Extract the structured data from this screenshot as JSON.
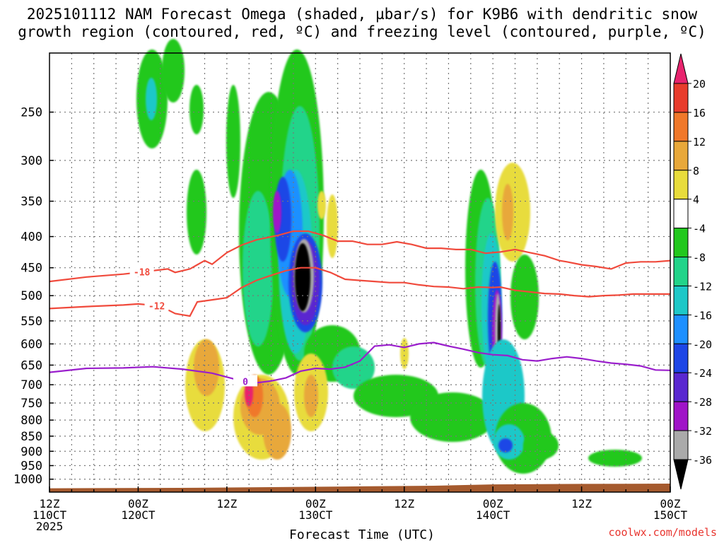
{
  "title": "2025101112 NAM Forecast Omega (shaded, µbar/s) for K9B6 with dendritic snow\ngrowth region (contoured, red, ºC) and freezing level (contoured, purple, ºC)",
  "footer": "coolwx.com/models",
  "chart_data": {
    "type": "time-height cross section",
    "xlabel": "Forecast Time (UTC)",
    "ylabel": "",
    "x_range_hours": [
      0,
      84
    ],
    "y_range_hpa": [
      1050,
      200
    ],
    "x_ticks": [
      {
        "hour": 0,
        "lines": [
          "12Z",
          "110CT",
          "2025"
        ]
      },
      {
        "hour": 12,
        "lines": [
          "00Z",
          "120CT"
        ]
      },
      {
        "hour": 24,
        "lines": [
          "12Z"
        ]
      },
      {
        "hour": 36,
        "lines": [
          "00Z",
          "130CT"
        ]
      },
      {
        "hour": 48,
        "lines": [
          "12Z"
        ]
      },
      {
        "hour": 60,
        "lines": [
          "00Z",
          "140CT"
        ]
      },
      {
        "hour": 72,
        "lines": [
          "12Z"
        ]
      },
      {
        "hour": 84,
        "lines": [
          "00Z",
          "150CT"
        ]
      }
    ],
    "y_ticks": [
      250,
      300,
      350,
      400,
      450,
      500,
      550,
      600,
      650,
      700,
      750,
      800,
      850,
      900,
      950,
      1000
    ],
    "colorbar": {
      "labels": [
        "20",
        "16",
        "12",
        "8",
        "4",
        "-4",
        "-8",
        "-12",
        "-16",
        "-20",
        "-24",
        "-28",
        "-32",
        "-36"
      ],
      "colors": [
        "#e8246e",
        "#e83c2c",
        "#f0782a",
        "#e8a83a",
        "#e8dc3c",
        "#ffffff",
        "#22c81e",
        "#22d48a",
        "#1ec8c8",
        "#1e90ff",
        "#1e46e6",
        "#5a28d0",
        "#a014c8",
        "#aaaaaa",
        "#000000"
      ]
    },
    "contours": [
      {
        "name": "-18 ºC",
        "color": "#f04a3c",
        "label": "-18",
        "points": [
          [
            0,
            474
          ],
          [
            5,
            466
          ],
          [
            10,
            461
          ],
          [
            12,
            458
          ],
          [
            16,
            452
          ],
          [
            17,
            458
          ],
          [
            19,
            452
          ],
          [
            20,
            445
          ],
          [
            21,
            438
          ],
          [
            22,
            444
          ],
          [
            24,
            425
          ],
          [
            26,
            413
          ],
          [
            28,
            405
          ],
          [
            31,
            398
          ],
          [
            33,
            392
          ],
          [
            35,
            392
          ],
          [
            37,
            398
          ],
          [
            39,
            407
          ],
          [
            41,
            407
          ],
          [
            43,
            412
          ],
          [
            45,
            412
          ],
          [
            47,
            408
          ],
          [
            49,
            412
          ],
          [
            51,
            418
          ],
          [
            53,
            418
          ],
          [
            55,
            420
          ],
          [
            57,
            420
          ],
          [
            59,
            426
          ],
          [
            61,
            424
          ],
          [
            63,
            420
          ],
          [
            65,
            425
          ],
          [
            67,
            430
          ],
          [
            69,
            438
          ],
          [
            70,
            440
          ],
          [
            72,
            445
          ],
          [
            74,
            448
          ],
          [
            76,
            452
          ],
          [
            78,
            442
          ],
          [
            80,
            440
          ],
          [
            82,
            440
          ],
          [
            84,
            438
          ]
        ],
        "label_at_hour": 12.5
      },
      {
        "name": "-12 ºC",
        "color": "#f04a3c",
        "label": "-12",
        "points": [
          [
            0,
            525
          ],
          [
            5,
            521
          ],
          [
            10,
            518
          ],
          [
            12,
            516
          ],
          [
            15,
            520
          ],
          [
            17,
            535
          ],
          [
            19,
            540
          ],
          [
            20,
            512
          ],
          [
            22,
            508
          ],
          [
            24,
            504
          ],
          [
            26,
            485
          ],
          [
            28,
            472
          ],
          [
            30,
            463
          ],
          [
            32,
            455
          ],
          [
            34,
            450
          ],
          [
            36,
            450
          ],
          [
            38,
            458
          ],
          [
            40,
            470
          ],
          [
            42,
            472
          ],
          [
            44,
            474
          ],
          [
            46,
            476
          ],
          [
            48,
            476
          ],
          [
            50,
            480
          ],
          [
            52,
            483
          ],
          [
            54,
            484
          ],
          [
            56,
            487
          ],
          [
            58,
            484
          ],
          [
            60,
            485
          ],
          [
            61,
            484
          ],
          [
            63,
            490
          ],
          [
            65,
            493
          ],
          [
            67,
            496
          ],
          [
            69,
            497
          ],
          [
            71,
            500
          ],
          [
            73,
            502
          ],
          [
            75,
            500
          ],
          [
            77,
            499
          ],
          [
            79,
            497
          ],
          [
            81,
            497
          ],
          [
            84,
            497
          ]
        ],
        "label_at_hour": 14.5
      },
      {
        "name": "0 ºC (freezing level)",
        "color": "#9a1ecc",
        "label": "0",
        "points": [
          [
            0,
            668
          ],
          [
            5,
            658
          ],
          [
            10,
            657
          ],
          [
            14,
            654
          ],
          [
            18,
            660
          ],
          [
            22,
            670
          ],
          [
            26,
            690
          ],
          [
            28,
            695
          ],
          [
            30,
            690
          ],
          [
            32,
            682
          ],
          [
            34,
            665
          ],
          [
            36,
            658
          ],
          [
            38,
            660
          ],
          [
            40,
            655
          ],
          [
            42,
            640
          ],
          [
            44,
            605
          ],
          [
            46,
            602
          ],
          [
            48,
            608
          ],
          [
            50,
            600
          ],
          [
            52,
            597
          ],
          [
            54,
            605
          ],
          [
            56,
            612
          ],
          [
            58,
            620
          ],
          [
            60,
            625
          ],
          [
            62,
            627
          ],
          [
            64,
            637
          ],
          [
            66,
            640
          ],
          [
            68,
            634
          ],
          [
            70,
            630
          ],
          [
            72,
            634
          ],
          [
            74,
            640
          ],
          [
            76,
            645
          ],
          [
            78,
            648
          ],
          [
            80,
            652
          ],
          [
            82,
            662
          ],
          [
            84,
            663
          ]
        ],
        "label_at_hour": 26.5
      }
    ],
    "surface": {
      "color": "#a55a2e",
      "points": [
        [
          0,
          1035
        ],
        [
          20,
          1033
        ],
        [
          40,
          1028
        ],
        [
          52,
          1025
        ],
        [
          60,
          1020
        ],
        [
          72,
          1018
        ],
        [
          84,
          1017
        ]
      ]
    }
  }
}
